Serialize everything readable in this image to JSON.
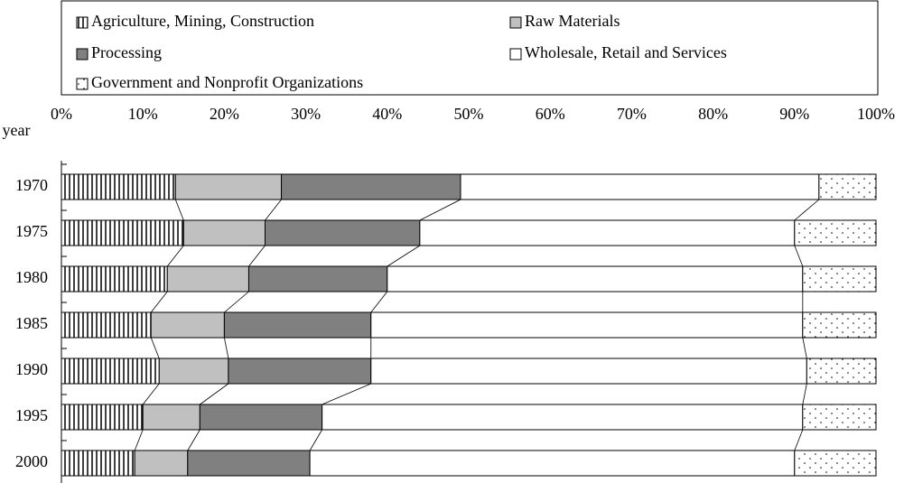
{
  "chart_data": {
    "type": "stacked-bar-horizontal",
    "y_label": "year",
    "categories": [
      "1970",
      "1975",
      "1980",
      "1985",
      "1990",
      "1995",
      "2000"
    ],
    "series": [
      {
        "name": "Agriculture, Mining, Construction",
        "color": "#ffffff",
        "pattern": "vertical-lines",
        "values": [
          14,
          15,
          13,
          11,
          12,
          10,
          9
        ]
      },
      {
        "name": "Raw Materials",
        "color": "#c0c0c0",
        "values": [
          13,
          10,
          10,
          9,
          8.5,
          7,
          6.5
        ]
      },
      {
        "name": "Processing",
        "color": "#808080",
        "values": [
          22,
          19,
          17,
          18,
          17.5,
          15,
          15
        ]
      },
      {
        "name": "Wholesale, Retail and Services",
        "color": "#ffffff",
        "values": [
          44,
          46,
          51,
          53,
          53.5,
          59,
          59.5
        ]
      },
      {
        "name": "Government and Nonprofit Organizations",
        "color": "#ffffff",
        "pattern": "dots",
        "values": [
          7,
          10,
          9,
          9,
          8.5,
          9,
          10
        ]
      }
    ],
    "xlim": [
      0,
      100
    ],
    "xticks": [
      {
        "value": 0,
        "label": "0%"
      },
      {
        "value": 10,
        "label": "10%"
      },
      {
        "value": 20,
        "label": "20%"
      },
      {
        "value": 30,
        "label": "30%"
      },
      {
        "value": 40,
        "label": "40%"
      },
      {
        "value": 50,
        "label": "50%"
      },
      {
        "value": 60,
        "label": "60%"
      },
      {
        "value": 70,
        "label": "70%"
      },
      {
        "value": 80,
        "label": "80%"
      },
      {
        "value": 90,
        "label": "90%"
      },
      {
        "value": 100,
        "label": "100%"
      }
    ],
    "legend": "top",
    "grid": false
  }
}
